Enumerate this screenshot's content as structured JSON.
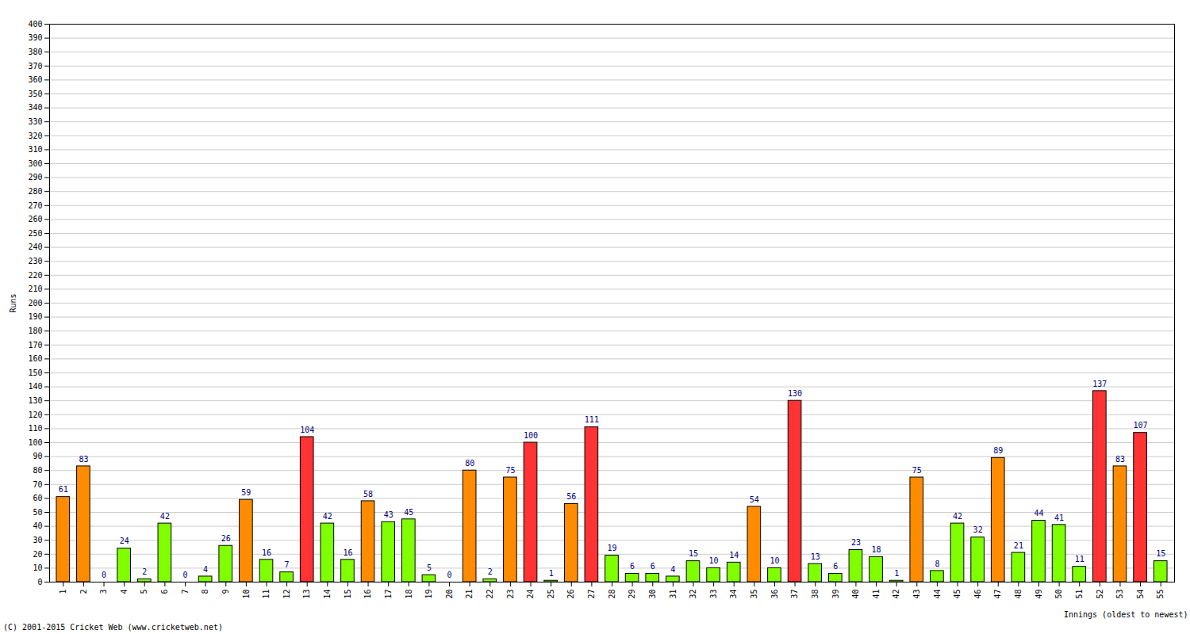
{
  "chart_data": {
    "type": "bar",
    "x_label": "Innings (oldest to newest)",
    "y_label": "Runs",
    "caption": "(C) 2001-2015 Cricket Web (www.cricketweb.net)",
    "categories": [
      "1",
      "2",
      "3",
      "4",
      "5",
      "6",
      "7",
      "8",
      "9",
      "10",
      "11",
      "12",
      "13",
      "14",
      "15",
      "16",
      "17",
      "18",
      "19",
      "20",
      "21",
      "22",
      "23",
      "24",
      "25",
      "26",
      "27",
      "28",
      "29",
      "30",
      "31",
      "32",
      "33",
      "34",
      "35",
      "36",
      "37",
      "38",
      "39",
      "40",
      "41",
      "42",
      "43",
      "44",
      "45",
      "46",
      "47",
      "48",
      "49",
      "50",
      "51",
      "52",
      "53",
      "54",
      "55"
    ],
    "values": [
      61,
      83,
      0,
      24,
      2,
      42,
      0,
      4,
      26,
      59,
      16,
      7,
      104,
      42,
      16,
      58,
      43,
      45,
      5,
      0,
      80,
      2,
      75,
      100,
      1,
      56,
      111,
      19,
      6,
      6,
      4,
      15,
      10,
      14,
      54,
      10,
      130,
      13,
      6,
      23,
      18,
      1,
      75,
      8,
      42,
      32,
      89,
      21,
      44,
      41,
      11,
      137,
      83,
      107,
      15
    ],
    "colors": [
      "#ff8c00",
      "#ff8c00",
      "#7fff00",
      "#7fff00",
      "#7fff00",
      "#7fff00",
      "#7fff00",
      "#7fff00",
      "#7fff00",
      "#ff8c00",
      "#7fff00",
      "#7fff00",
      "#ff3333",
      "#7fff00",
      "#7fff00",
      "#ff8c00",
      "#7fff00",
      "#7fff00",
      "#7fff00",
      "#7fff00",
      "#ff8c00",
      "#7fff00",
      "#ff8c00",
      "#ff3333",
      "#7fff00",
      "#ff8c00",
      "#ff3333",
      "#7fff00",
      "#7fff00",
      "#7fff00",
      "#7fff00",
      "#7fff00",
      "#7fff00",
      "#7fff00",
      "#ff8c00",
      "#7fff00",
      "#ff3333",
      "#7fff00",
      "#7fff00",
      "#7fff00",
      "#7fff00",
      "#7fff00",
      "#ff8c00",
      "#7fff00",
      "#7fff00",
      "#7fff00",
      "#ff8c00",
      "#7fff00",
      "#7fff00",
      "#7fff00",
      "#7fff00",
      "#ff3333",
      "#ff8c00",
      "#ff3333",
      "#7fff00"
    ],
    "ylim": [
      0,
      400
    ],
    "yticks": [
      0,
      10,
      20,
      30,
      40,
      50,
      60,
      70,
      80,
      90,
      100,
      110,
      120,
      130,
      140,
      150,
      160,
      170,
      180,
      190,
      200,
      210,
      220,
      230,
      240,
      250,
      260,
      270,
      280,
      290,
      300,
      310,
      320,
      330,
      340,
      350,
      360,
      370,
      380,
      390,
      400
    ],
    "grid": true,
    "data_labels": true
  }
}
